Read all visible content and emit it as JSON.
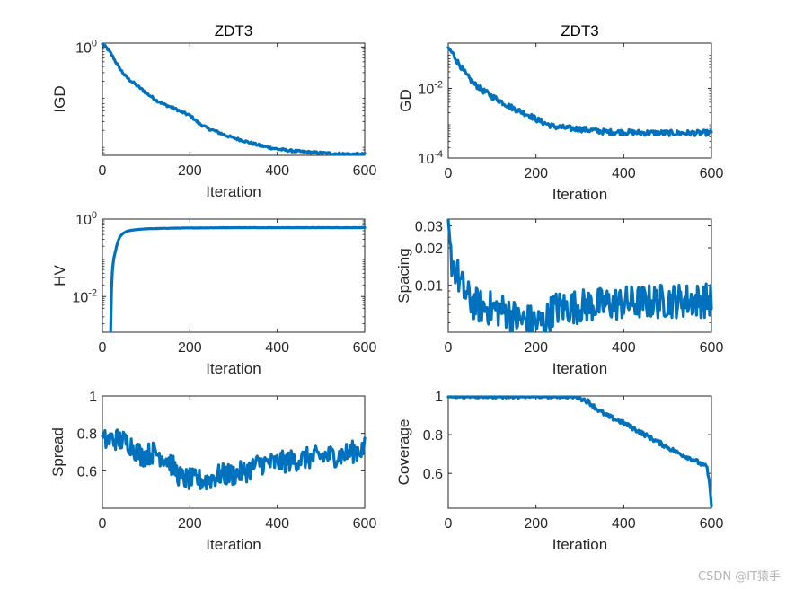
{
  "watermark": "CSDN @IT猿手",
  "colors": {
    "series": "#0072BD",
    "axis": "#262626"
  },
  "chart_data": [
    {
      "id": "igd",
      "type": "line",
      "title": "ZDT3",
      "xlabel": "Iteration",
      "ylabel": "IGD",
      "xlim": [
        0,
        600
      ],
      "xticks": [
        "0",
        "200",
        "400",
        "600"
      ],
      "yscale": "log",
      "ylim": [
        0.0062,
        1.2
      ],
      "yticks": [
        {
          "value": 1,
          "base": "10",
          "exp": "0"
        }
      ],
      "x": [
        0,
        10,
        20,
        30,
        40,
        50,
        60,
        80,
        100,
        120,
        140,
        160,
        180,
        200,
        220,
        240,
        260,
        280,
        300,
        320,
        340,
        360,
        380,
        400,
        430,
        460,
        490,
        520,
        550,
        580,
        600
      ],
      "y": [
        1.15,
        0.95,
        0.72,
        0.5,
        0.36,
        0.27,
        0.22,
        0.16,
        0.115,
        0.085,
        0.068,
        0.058,
        0.048,
        0.04,
        0.028,
        0.022,
        0.019,
        0.016,
        0.014,
        0.0125,
        0.011,
        0.0098,
        0.009,
        0.0083,
        0.0077,
        0.0073,
        0.007,
        0.0068,
        0.0066,
        0.0065,
        0.0065
      ],
      "noise": 0.025
    },
    {
      "id": "gd",
      "type": "line",
      "title": "ZDT3",
      "xlabel": "Iteration",
      "ylabel": "GD",
      "xlim": [
        0,
        600
      ],
      "xticks": [
        "0",
        "200",
        "400",
        "600"
      ],
      "yscale": "log",
      "ylim": [
        0.0001,
        0.2
      ],
      "yticks": [
        {
          "value": 0.01,
          "base": "10",
          "exp": "-2"
        },
        {
          "value": 0.0001,
          "base": "10",
          "exp": "-4"
        }
      ],
      "x": [
        0,
        10,
        20,
        30,
        40,
        50,
        60,
        80,
        100,
        120,
        140,
        160,
        180,
        200,
        220,
        240,
        260,
        280,
        300,
        330,
        360,
        400,
        450,
        500,
        550,
        600
      ],
      "y": [
        0.14,
        0.1,
        0.06,
        0.04,
        0.025,
        0.018,
        0.013,
        0.0085,
        0.0058,
        0.0042,
        0.003,
        0.0023,
        0.0018,
        0.0013,
        0.001,
        0.0008,
        0.00075,
        0.0007,
        0.00068,
        0.00062,
        0.00056,
        0.00055,
        0.00053,
        0.00052,
        0.00052,
        0.00053
      ],
      "noise": 0.08
    },
    {
      "id": "hv",
      "type": "line",
      "title": "",
      "xlabel": "Iteration",
      "ylabel": "HV",
      "xlim": [
        0,
        600
      ],
      "xticks": [
        "0",
        "200",
        "400",
        "600"
      ],
      "yscale": "log",
      "ylim": [
        0.0012,
        1
      ],
      "yticks": [
        {
          "value": 1,
          "base": "10",
          "exp": "0"
        },
        {
          "value": 0.01,
          "base": "10",
          "exp": "-2"
        }
      ],
      "x": [
        19,
        20,
        22,
        25,
        30,
        35,
        40,
        50,
        60,
        80,
        100,
        150,
        200,
        300,
        400,
        500,
        600
      ],
      "y": [
        0.0012,
        0.003,
        0.03,
        0.08,
        0.15,
        0.25,
        0.35,
        0.45,
        0.5,
        0.54,
        0.56,
        0.58,
        0.59,
        0.6,
        0.6,
        0.6,
        0.6
      ],
      "noise": 0.004
    },
    {
      "id": "spacing",
      "type": "line",
      "title": "",
      "xlabel": "Iteration",
      "ylabel": "Spacing",
      "xlim": [
        0,
        600
      ],
      "xticks": [
        "0",
        "200",
        "400",
        "600"
      ],
      "yscale": "log",
      "ylim": [
        0.0042,
        0.034
      ],
      "yticks": [
        {
          "value": 0.03,
          "label": "0.03"
        },
        {
          "value": 0.02,
          "label": "0.02"
        },
        {
          "value": 0.01,
          "label": "0.01"
        }
      ],
      "x": [
        0,
        3,
        8,
        15,
        25,
        35,
        50,
        70,
        100,
        130,
        150,
        160,
        180,
        200,
        220,
        240,
        300,
        400,
        500,
        600
      ],
      "y": [
        0.032,
        0.019,
        0.016,
        0.014,
        0.011,
        0.009,
        0.0075,
        0.0068,
        0.0065,
        0.0062,
        0.0056,
        0.0052,
        0.0052,
        0.005,
        0.005,
        0.0065,
        0.0068,
        0.0072,
        0.0075,
        0.0076
      ],
      "noise": 0.14
    },
    {
      "id": "spread",
      "type": "line",
      "title": "",
      "xlabel": "Iteration",
      "ylabel": "Spread",
      "xlim": [
        0,
        600
      ],
      "xticks": [
        "0",
        "200",
        "400",
        "600"
      ],
      "yscale": "linear",
      "ylim": [
        0.4,
        1.0
      ],
      "yticks": [
        {
          "value": 1,
          "label": "1"
        },
        {
          "value": 0.8,
          "label": "0.8"
        },
        {
          "value": 0.6,
          "label": "0.6"
        }
      ],
      "x": [
        0,
        30,
        60,
        90,
        120,
        150,
        180,
        210,
        240,
        270,
        300,
        330,
        360,
        390,
        420,
        450,
        480,
        510,
        540,
        570,
        600
      ],
      "y": [
        0.76,
        0.77,
        0.75,
        0.68,
        0.7,
        0.66,
        0.56,
        0.55,
        0.55,
        0.58,
        0.58,
        0.6,
        0.64,
        0.64,
        0.65,
        0.66,
        0.67,
        0.68,
        0.68,
        0.7,
        0.72
      ],
      "noise": 0.06
    },
    {
      "id": "coverage",
      "type": "line",
      "title": "",
      "xlabel": "Iteration",
      "ylabel": "Coverage",
      "xlim": [
        0,
        600
      ],
      "xticks": [
        "0",
        "200",
        "400",
        "600"
      ],
      "yscale": "linear",
      "ylim": [
        0.42,
        1.0
      ],
      "yticks": [
        {
          "value": 1,
          "label": "1"
        },
        {
          "value": 0.8,
          "label": "0.8"
        },
        {
          "value": 0.6,
          "label": "0.6"
        }
      ],
      "x": [
        0,
        100,
        200,
        280,
        300,
        320,
        340,
        360,
        400,
        440,
        480,
        520,
        560,
        590,
        598,
        600
      ],
      "y": [
        1.0,
        1.0,
        1.0,
        1.0,
        0.99,
        0.97,
        0.93,
        0.9,
        0.86,
        0.81,
        0.76,
        0.71,
        0.67,
        0.63,
        0.5,
        0.44
      ],
      "noise": 0.012
    }
  ]
}
